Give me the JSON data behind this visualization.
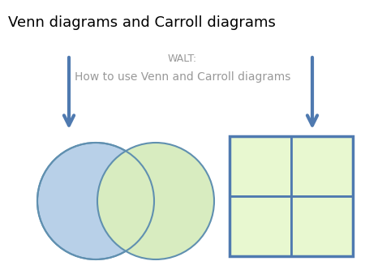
{
  "title": "Venn diagrams and Carroll diagrams",
  "subtitle_line1": "WALT:",
  "subtitle_line2": "How to use Venn and Carroll diagrams",
  "title_color": "#000000",
  "subtitle_color": "#999999",
  "background_color": "#ffffff",
  "venn_circle1_color": "#b8d0e8",
  "venn_circle2_color": "#d8ecc0",
  "venn_edge_color": "#6090b0",
  "carroll_fill_color": "#e8f8d0",
  "carroll_edge_color": "#4f7ab0",
  "arrow_color": "#4f7ab0",
  "title_fontsize": 13,
  "subtitle1_fontsize": 9,
  "subtitle2_fontsize": 10
}
